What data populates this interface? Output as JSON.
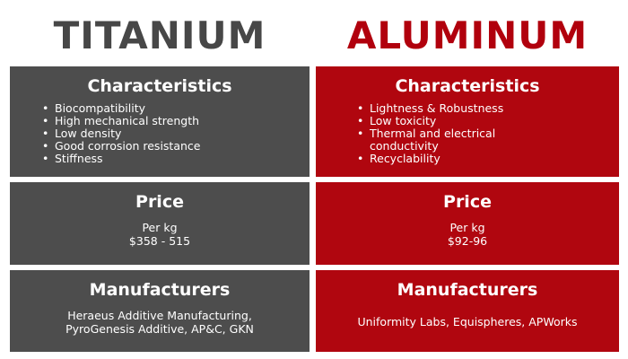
{
  "titanium": {
    "title": "TITANIUM",
    "color": "#4d4d4d",
    "characteristics": {
      "heading": "Characteristics",
      "items": [
        "Biocompatibility",
        "High mechanical strength",
        "Low density",
        "Good corrosion resistance",
        "Stiffness"
      ]
    },
    "price": {
      "heading": "Price",
      "unit": "Per kg",
      "value": "$358 - 515"
    },
    "manufacturers": {
      "heading": "Manufacturers",
      "line1": "Heraeus Additive Manufacturing,",
      "line2": "PyroGenesis Additive, AP&C, GKN"
    }
  },
  "aluminum": {
    "title": "ALUMINUM",
    "color": "#b0060f",
    "characteristics": {
      "heading": "Characteristics",
      "items": [
        "Lightness & Robustness",
        "Low toxicity",
        "Thermal and electrical conductivity",
        "Recyclability"
      ]
    },
    "price": {
      "heading": "Price",
      "unit": "Per kg",
      "value": "$92-96"
    },
    "manufacturers": {
      "heading": "Manufacturers",
      "line1": "Uniformity Labs, Equispheres, APWorks"
    }
  }
}
